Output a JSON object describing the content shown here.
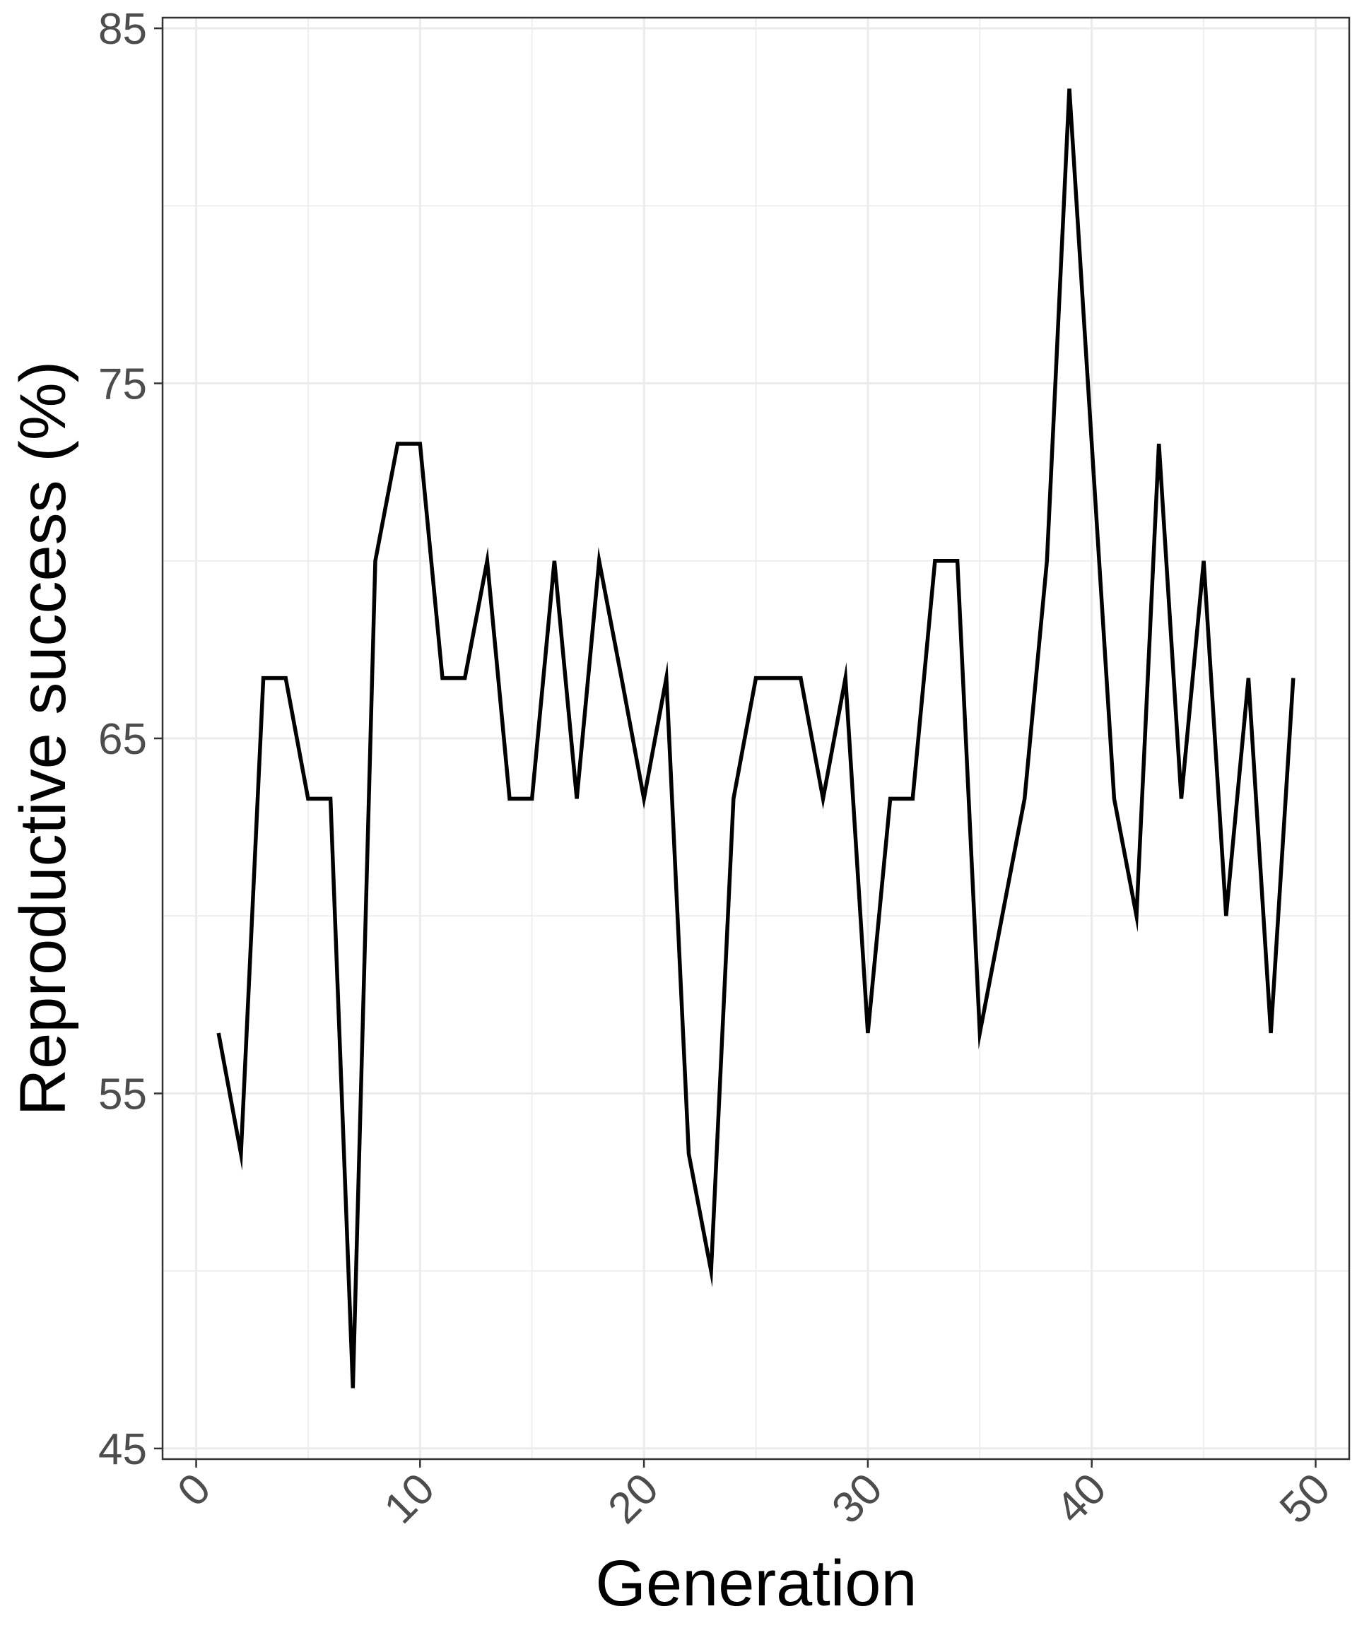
{
  "chart_data": {
    "type": "line",
    "title": "",
    "xlabel": "Generation",
    "ylabel": "Reproductive success (%)",
    "xlim": [
      -1.5,
      51.5
    ],
    "ylim": [
      44.7,
      85.3
    ],
    "x_ticks": [
      0,
      10,
      20,
      30,
      40,
      50
    ],
    "x_tick_labels": [
      "0",
      "10",
      "20",
      "30",
      "40",
      "50"
    ],
    "y_ticks": [
      45,
      55,
      65,
      75,
      85
    ],
    "y_tick_labels": [
      "45",
      "55",
      "65",
      "75",
      "85"
    ],
    "grid": true,
    "legend": "none",
    "line_color": "#000000",
    "series": [
      {
        "x": [
          1,
          2,
          3,
          4,
          5,
          6,
          7,
          8,
          9,
          10,
          11,
          12,
          13,
          14,
          15,
          16,
          17,
          18,
          19,
          20,
          21,
          22,
          23,
          24,
          25,
          26,
          27,
          28,
          29,
          30,
          31,
          32,
          33,
          34,
          35,
          36,
          37,
          38,
          39,
          40,
          41,
          42,
          43,
          44,
          45,
          46,
          47,
          48,
          49
        ],
        "values": [
          56.7,
          53.3,
          66.7,
          66.7,
          63.3,
          63.3,
          46.7,
          70,
          73.3,
          73.3,
          66.7,
          66.7,
          70,
          63.3,
          63.3,
          70,
          63.3,
          70,
          66.7,
          63.3,
          66.7,
          53.3,
          50,
          63.3,
          66.7,
          66.7,
          66.7,
          63.3,
          66.7,
          56.7,
          63.3,
          63.3,
          70,
          70,
          56.7,
          60,
          63.3,
          70,
          83.3,
          73.3,
          63.3,
          60,
          73.3,
          63.3,
          70,
          60,
          66.7,
          56.7,
          66.7
        ]
      }
    ]
  }
}
